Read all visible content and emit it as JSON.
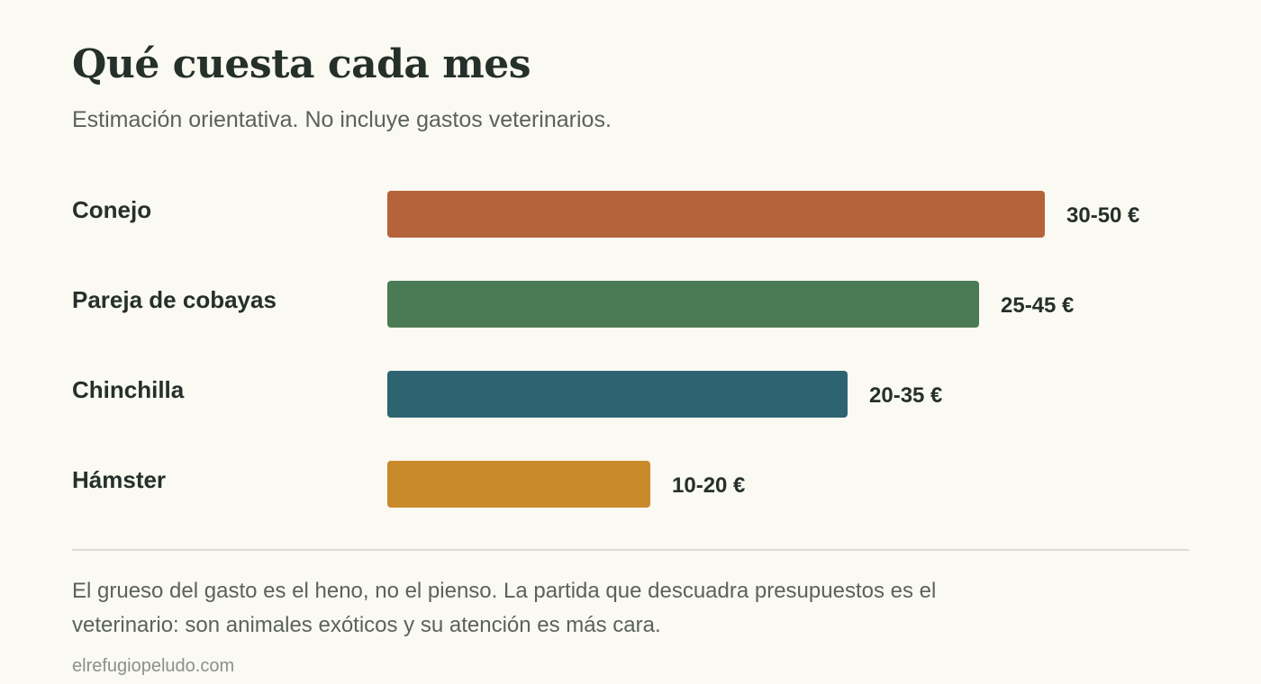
{
  "header": {
    "title": "Qué cuesta cada mes",
    "subtitle": "Estimación orientativa. No incluye gastos veterinarios."
  },
  "chart_data": {
    "type": "bar",
    "orientation": "horizontal",
    "categories": [
      "Conejo",
      "Pareja de cobayas",
      "Chinchilla",
      "Hámster"
    ],
    "series": [
      {
        "values_min": [
          30,
          25,
          20,
          10
        ],
        "values_max": [
          50,
          45,
          35,
          20
        ],
        "labels": [
          "30-50 €",
          "25-45 €",
          "20-35 €",
          "10-20 €"
        ]
      }
    ],
    "colors": [
      "#b5633a",
      "#4a7b54",
      "#2e6472",
      "#c98a2b"
    ],
    "xlim": [
      0,
      50
    ],
    "grid": false,
    "legend": "none"
  },
  "footer": {
    "note": "El grueso del gasto es el heno, no el pienso. La partida que descuadra presupuestos es el veterinario: son animales exóticos y su atención es más cara.",
    "source": "elrefugiopeludo.com"
  }
}
